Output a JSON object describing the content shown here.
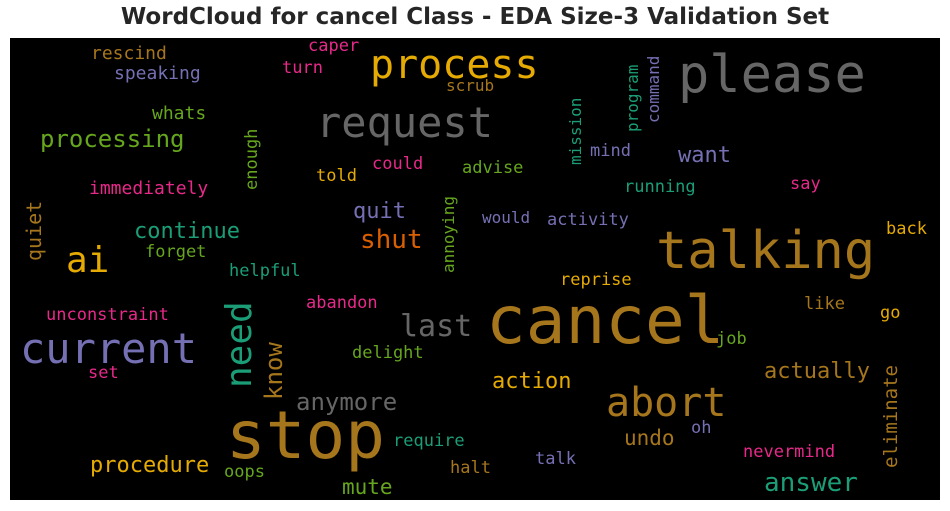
{
  "title": "WordCloud for cancel Class - EDA Size-3 Validation Set",
  "colors": {
    "gold": "#e6ab02",
    "brown": "#a6761d",
    "purple": "#7570b3",
    "green": "#66a61e",
    "teal": "#1b9e77",
    "pink": "#e7298a",
    "orange": "#d95f02",
    "gray": "#666666"
  },
  "chart_data": {
    "type": "wordcloud",
    "title": "WordCloud for cancel Class - EDA Size-3 Validation Set",
    "words": [
      {
        "text": "cancel",
        "color": "brown",
        "vertical": false
      },
      {
        "text": "stop",
        "color": "brown",
        "vertical": false
      },
      {
        "text": "talking",
        "color": "brown",
        "vertical": false
      },
      {
        "text": "please",
        "color": "gray",
        "vertical": false
      },
      {
        "text": "request",
        "color": "gray",
        "vertical": false
      },
      {
        "text": "current",
        "color": "purple",
        "vertical": false
      },
      {
        "text": "process",
        "color": "gold",
        "vertical": false
      },
      {
        "text": "abort",
        "color": "brown",
        "vertical": false
      },
      {
        "text": "need",
        "color": "teal",
        "vertical": true
      },
      {
        "text": "ai",
        "color": "gold",
        "vertical": false
      },
      {
        "text": "last",
        "color": "gray",
        "vertical": false
      },
      {
        "text": "answer",
        "color": "teal",
        "vertical": false
      },
      {
        "text": "anymore",
        "color": "gray",
        "vertical": false
      },
      {
        "text": "shut",
        "color": "orange",
        "vertical": false
      },
      {
        "text": "know",
        "color": "brown",
        "vertical": true
      },
      {
        "text": "processing",
        "color": "green",
        "vertical": false
      },
      {
        "text": "continue",
        "color": "teal",
        "vertical": false
      },
      {
        "text": "procedure",
        "color": "gold",
        "vertical": false
      },
      {
        "text": "actually",
        "color": "brown",
        "vertical": false
      },
      {
        "text": "eliminate",
        "color": "brown",
        "vertical": true
      },
      {
        "text": "action",
        "color": "gold",
        "vertical": false
      },
      {
        "text": "undo",
        "color": "brown",
        "vertical": false
      },
      {
        "text": "mute",
        "color": "green",
        "vertical": false
      },
      {
        "text": "quit",
        "color": "purple",
        "vertical": false
      },
      {
        "text": "want",
        "color": "purple",
        "vertical": false
      },
      {
        "text": "quiet",
        "color": "brown",
        "vertical": true
      },
      {
        "text": "rescind",
        "color": "brown",
        "vertical": false
      },
      {
        "text": "speaking",
        "color": "purple",
        "vertical": false
      },
      {
        "text": "caper",
        "color": "pink",
        "vertical": false
      },
      {
        "text": "turn",
        "color": "pink",
        "vertical": false
      },
      {
        "text": "scrub",
        "color": "brown",
        "vertical": false
      },
      {
        "text": "whats",
        "color": "green",
        "vertical": false
      },
      {
        "text": "immediately",
        "color": "pink",
        "vertical": false
      },
      {
        "text": "enough",
        "color": "green",
        "vertical": true
      },
      {
        "text": "told",
        "color": "gold",
        "vertical": false
      },
      {
        "text": "could",
        "color": "pink",
        "vertical": false
      },
      {
        "text": "advise",
        "color": "green",
        "vertical": false
      },
      {
        "text": "mission",
        "color": "teal",
        "vertical": true
      },
      {
        "text": "program",
        "color": "teal",
        "vertical": true
      },
      {
        "text": "command",
        "color": "purple",
        "vertical": true
      },
      {
        "text": "mind",
        "color": "purple",
        "vertical": false
      },
      {
        "text": "running",
        "color": "teal",
        "vertical": false
      },
      {
        "text": "say",
        "color": "pink",
        "vertical": false
      },
      {
        "text": "annoying",
        "color": "green",
        "vertical": true
      },
      {
        "text": "would",
        "color": "purple",
        "vertical": false
      },
      {
        "text": "activity",
        "color": "purple",
        "vertical": false
      },
      {
        "text": "back",
        "color": "gold",
        "vertical": false
      },
      {
        "text": "forget",
        "color": "green",
        "vertical": false
      },
      {
        "text": "helpful",
        "color": "teal",
        "vertical": false
      },
      {
        "text": "reprise",
        "color": "gold",
        "vertical": false
      },
      {
        "text": "abandon",
        "color": "pink",
        "vertical": false
      },
      {
        "text": "unconstraint",
        "color": "pink",
        "vertical": false
      },
      {
        "text": "like",
        "color": "brown",
        "vertical": false
      },
      {
        "text": "go",
        "color": "gold",
        "vertical": false
      },
      {
        "text": "delight",
        "color": "green",
        "vertical": false
      },
      {
        "text": "job",
        "color": "green",
        "vertical": false
      },
      {
        "text": "set",
        "color": "pink",
        "vertical": false
      },
      {
        "text": "require",
        "color": "teal",
        "vertical": false
      },
      {
        "text": "oh",
        "color": "purple",
        "vertical": false
      },
      {
        "text": "nevermind",
        "color": "pink",
        "vertical": false
      },
      {
        "text": "oops",
        "color": "green",
        "vertical": false
      },
      {
        "text": "halt",
        "color": "brown",
        "vertical": false
      },
      {
        "text": "talk",
        "color": "purple",
        "vertical": false
      }
    ]
  }
}
